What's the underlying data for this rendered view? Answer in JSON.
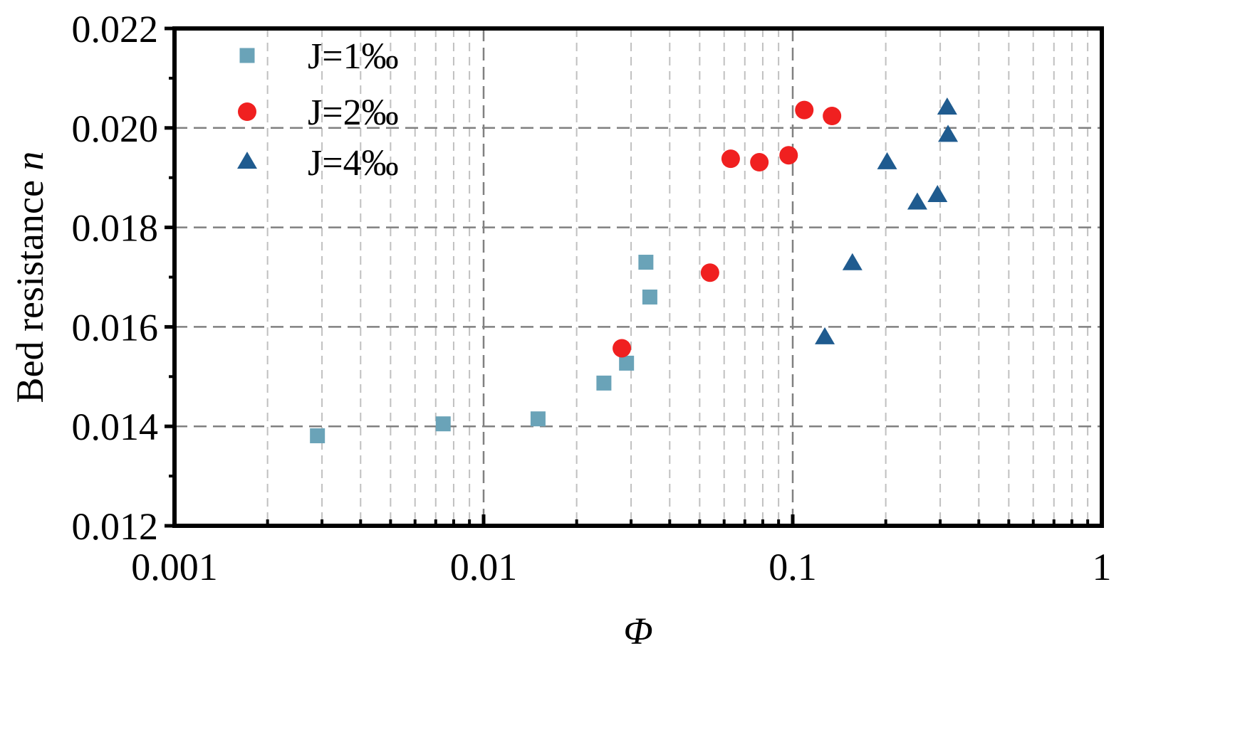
{
  "chart_data": {
    "type": "scatter",
    "title": "",
    "xlabel": "Φ",
    "ylabel_main": "Bed resistance ",
    "ylabel_var": "n",
    "xscale": "log",
    "xlim": [
      0.001,
      1
    ],
    "ylim": [
      0.012,
      0.022
    ],
    "grid": true,
    "legend_position": "top-left",
    "x_ticks": [
      0.001,
      0.01,
      0.1,
      1
    ],
    "x_tick_labels": [
      "0.001",
      "0.01",
      "0.1",
      "1"
    ],
    "y_ticks": [
      0.012,
      0.014,
      0.016,
      0.018,
      0.02,
      0.022
    ],
    "y_tick_labels": [
      "0.012",
      "0.014",
      "0.016",
      "0.018",
      "0.020",
      "0.022"
    ],
    "series": [
      {
        "name": "J=1‰",
        "marker": "square",
        "color": "#6aa3b8",
        "points": [
          {
            "x": 0.0029,
            "y": 0.01381
          },
          {
            "x": 0.0074,
            "y": 0.01405
          },
          {
            "x": 0.015,
            "y": 0.01415
          },
          {
            "x": 0.0245,
            "y": 0.01487
          },
          {
            "x": 0.029,
            "y": 0.01527
          },
          {
            "x": 0.0335,
            "y": 0.0173
          },
          {
            "x": 0.0345,
            "y": 0.0166
          }
        ]
      },
      {
        "name": "J=2‰",
        "marker": "circle",
        "color": "#f02020",
        "points": [
          {
            "x": 0.028,
            "y": 0.01557
          },
          {
            "x": 0.054,
            "y": 0.01709
          },
          {
            "x": 0.063,
            "y": 0.01938
          },
          {
            "x": 0.078,
            "y": 0.01931
          },
          {
            "x": 0.097,
            "y": 0.01945
          },
          {
            "x": 0.109,
            "y": 0.02036
          },
          {
            "x": 0.134,
            "y": 0.02024
          }
        ]
      },
      {
        "name": "J=4‰",
        "marker": "triangle",
        "color": "#1f5b8f",
        "points": [
          {
            "x": 0.127,
            "y": 0.01578
          },
          {
            "x": 0.156,
            "y": 0.01727
          },
          {
            "x": 0.202,
            "y": 0.0193
          },
          {
            "x": 0.253,
            "y": 0.01849
          },
          {
            "x": 0.294,
            "y": 0.01864
          },
          {
            "x": 0.316,
            "y": 0.0204
          },
          {
            "x": 0.318,
            "y": 0.01985
          }
        ]
      }
    ]
  }
}
